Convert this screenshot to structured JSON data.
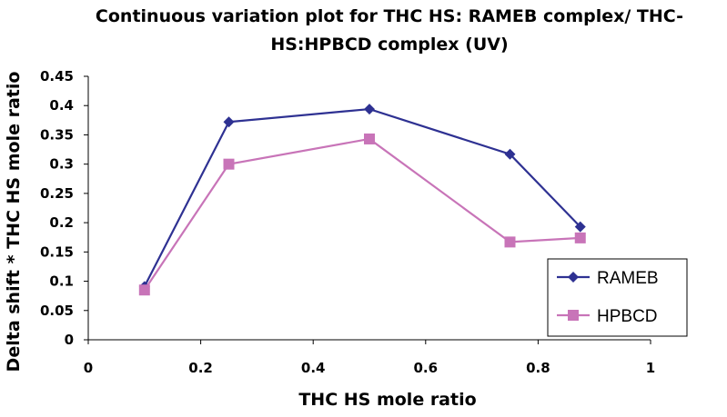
{
  "chart_data": {
    "type": "line",
    "title_lines": [
      "Continuous variation plot for THC HS: RAMEB complex/ THC-",
      "HS:HPBCD complex (UV)"
    ],
    "xlabel": "THC HS mole ratio",
    "ylabel": "Delta shift * THC HS mole ratio",
    "xlim": [
      0,
      1
    ],
    "ylim": [
      0,
      0.45
    ],
    "x_ticks": [
      0,
      0.2,
      0.4,
      0.6,
      0.8,
      1
    ],
    "x_tick_labels": [
      "0",
      "0.2",
      "0.4",
      "0.6",
      "0.8",
      "1"
    ],
    "y_ticks": [
      0,
      0.05,
      0.1,
      0.15,
      0.2,
      0.25,
      0.3,
      0.35,
      0.4,
      0.45
    ],
    "y_tick_labels": [
      "0",
      "0.05",
      "0.1",
      "0.15",
      "0.2",
      "0.25",
      "0.3",
      "0.35",
      "0.4",
      "0.45"
    ],
    "grid": false,
    "legend_position": "bottom-right",
    "series": [
      {
        "name": "RAMEB",
        "color": "#2e3192",
        "marker": "diamond",
        "x": [
          0.1,
          0.25,
          0.5,
          0.75,
          0.875
        ],
        "y": [
          0.091,
          0.372,
          0.394,
          0.317,
          0.193
        ]
      },
      {
        "name": "HPBCD",
        "color": "#c874b8",
        "marker": "square",
        "x": [
          0.1,
          0.25,
          0.5,
          0.75,
          0.875
        ],
        "y": [
          0.085,
          0.3,
          0.343,
          0.167,
          0.174
        ]
      }
    ]
  }
}
